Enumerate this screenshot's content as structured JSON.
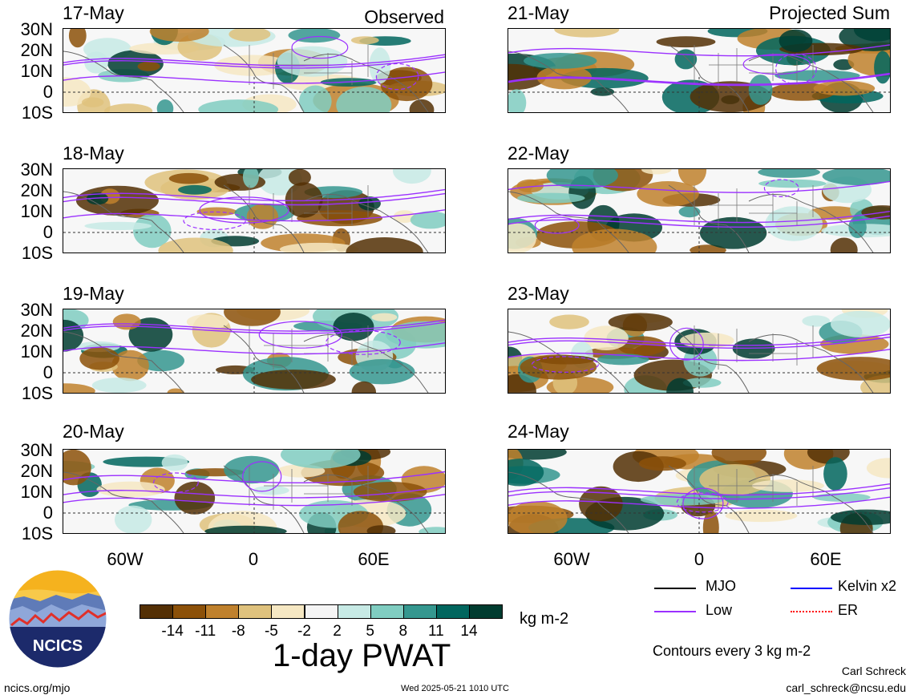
{
  "headers": {
    "left": "Observed",
    "right": "Projected Sum"
  },
  "panels_left": [
    "17-May",
    "18-May",
    "19-May",
    "20-May"
  ],
  "panels_right": [
    "21-May",
    "22-May",
    "23-May",
    "24-May"
  ],
  "lat_labels": [
    "30N",
    "20N",
    "10N",
    "0",
    "10S"
  ],
  "lon_labels": [
    "60W",
    "0",
    "60E"
  ],
  "colorbar": {
    "colors": [
      "#543005",
      "#8c5109",
      "#bf812d",
      "#dfc27d",
      "#f6e8c3",
      "#f5f5f5",
      "#c7eae5",
      "#80cdc1",
      "#35978f",
      "#01665e",
      "#003c30"
    ],
    "labels": [
      "-14",
      "-11",
      "-8",
      "-5",
      "-2",
      "2",
      "5",
      "8",
      "11",
      "14"
    ],
    "units": "kg m-2",
    "title": "1-day PWAT"
  },
  "legend": {
    "items": [
      {
        "label": "MJO",
        "color": "#000000"
      },
      {
        "label": "Kelvin x2",
        "color": "#0000ff"
      },
      {
        "label": "Low",
        "color": "#9b30ff"
      },
      {
        "label": "ER",
        "color": "#ff0000"
      }
    ],
    "note": "Contours every 3 kg m-2"
  },
  "logo": {
    "text": "NCICS"
  },
  "footer": {
    "left": "ncics.org/mjo",
    "center": "Wed 2025-05-21 1010 UTC",
    "author": "Carl Schreck",
    "email": "carl_schreck@ncsu.edu"
  }
}
